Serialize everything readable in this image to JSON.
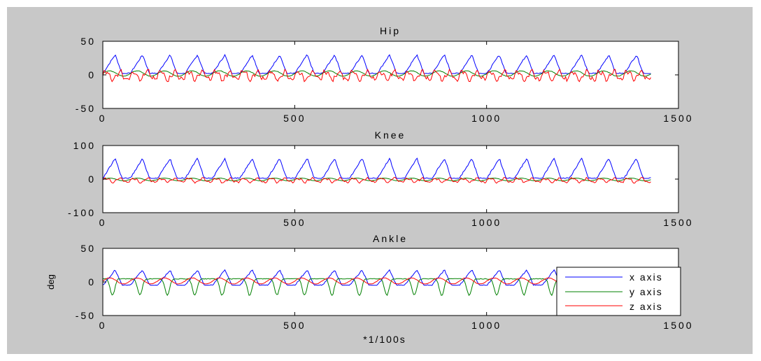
{
  "figure": {
    "background": "#c8c8c8",
    "axes_background": "#ffffff"
  },
  "legend": {
    "placement": "lower-right of Ankle panel",
    "entries": [
      {
        "label": "x axis",
        "color": "#0000ff"
      },
      {
        "label": "y axis",
        "color": "#008000"
      },
      {
        "label": "z axis",
        "color": "#ff0000"
      }
    ]
  },
  "chart_data": [
    {
      "type": "line",
      "title": "Hip",
      "xlabel": "",
      "ylabel": "",
      "xlim": [
        0,
        1500
      ],
      "ylim": [
        -50,
        50
      ],
      "xticks": [
        "0",
        "500",
        "1000",
        "1500"
      ],
      "yticks": [
        "50",
        "0",
        "-50"
      ],
      "grid": false,
      "cycles": 20,
      "samples": 1430,
      "series": [
        {
          "name": "x axis",
          "color": "#0000ff",
          "min": 2,
          "max": 30,
          "pattern": "periodic-peak"
        },
        {
          "name": "y axis",
          "color": "#008000",
          "min": -2,
          "max": 6,
          "pattern": "periodic-small"
        },
        {
          "name": "z axis",
          "color": "#ff0000",
          "min": -10,
          "max": 8,
          "pattern": "periodic-noisy"
        }
      ]
    },
    {
      "type": "line",
      "title": "Knee",
      "xlabel": "",
      "ylabel": "",
      "xlim": [
        0,
        1500
      ],
      "ylim": [
        -100,
        100
      ],
      "xticks": [
        "0",
        "500",
        "1000",
        "1500"
      ],
      "yticks": [
        "100",
        "0",
        "-100"
      ],
      "grid": false,
      "cycles": 20,
      "samples": 1430,
      "series": [
        {
          "name": "x axis",
          "color": "#0000ff",
          "min": 2,
          "max": 62,
          "pattern": "periodic-peak"
        },
        {
          "name": "y axis",
          "color": "#008000",
          "min": -5,
          "max": 3,
          "pattern": "periodic-small"
        },
        {
          "name": "z axis",
          "color": "#ff0000",
          "min": -12,
          "max": 5,
          "pattern": "periodic-noisy"
        }
      ]
    },
    {
      "type": "line",
      "title": "Ankle",
      "xlabel": "*1/100s",
      "ylabel": "deg",
      "xlim": [
        0,
        1500
      ],
      "ylim": [
        -50,
        50
      ],
      "xticks": [
        "0",
        "500",
        "1000",
        "1500"
      ],
      "yticks": [
        "50",
        "0",
        "-50"
      ],
      "grid": false,
      "cycles": 20,
      "samples": 1430,
      "series": [
        {
          "name": "x axis",
          "color": "#0000ff",
          "min": -5,
          "max": 18,
          "pattern": "periodic-peak"
        },
        {
          "name": "y axis",
          "color": "#008000",
          "min": -20,
          "max": 5,
          "pattern": "periodic-dip"
        },
        {
          "name": "z axis",
          "color": "#ff0000",
          "min": -3,
          "max": 6,
          "pattern": "periodic-small"
        }
      ]
    }
  ]
}
